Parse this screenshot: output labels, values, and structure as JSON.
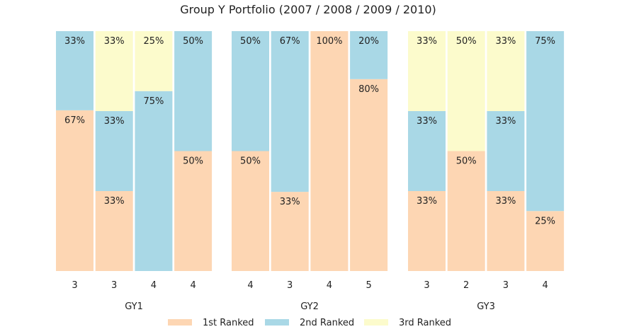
{
  "chart_data": {
    "type": "bar",
    "stacked": true,
    "normalized": true,
    "title": "Group Y Portfolio (2007 / 2008 / 2009 / 2010)",
    "xlabel": "",
    "ylabel": "",
    "ylim": [
      0,
      100
    ],
    "grid": false,
    "legend_position": "bottom",
    "series": [
      {
        "name": "1st Ranked",
        "color": "#fdd6b3"
      },
      {
        "name": "2nd Ranked",
        "color": "#a9d8e6"
      },
      {
        "name": "3rd Ranked",
        "color": "#fcfbcc"
      }
    ],
    "groups": [
      {
        "label": "GY1",
        "bars": [
          {
            "count": "3",
            "values": [
              67,
              33,
              0
            ]
          },
          {
            "count": "3",
            "values": [
              33,
              33,
              33
            ]
          },
          {
            "count": "4",
            "values": [
              0,
              75,
              25
            ]
          },
          {
            "count": "4",
            "values": [
              50,
              50,
              0
            ]
          }
        ]
      },
      {
        "label": "GY2",
        "bars": [
          {
            "count": "4",
            "values": [
              50,
              50,
              0
            ]
          },
          {
            "count": "3",
            "values": [
              33,
              67,
              0
            ]
          },
          {
            "count": "4",
            "values": [
              100,
              0,
              0
            ]
          },
          {
            "count": "5",
            "values": [
              80,
              20,
              0
            ]
          }
        ]
      },
      {
        "label": "GY3",
        "bars": [
          {
            "count": "3",
            "values": [
              33,
              33,
              33
            ]
          },
          {
            "count": "2",
            "values": [
              50,
              0,
              50
            ]
          },
          {
            "count": "3",
            "values": [
              33,
              33,
              33
            ]
          },
          {
            "count": "4",
            "values": [
              25,
              75,
              0
            ]
          }
        ]
      }
    ]
  }
}
